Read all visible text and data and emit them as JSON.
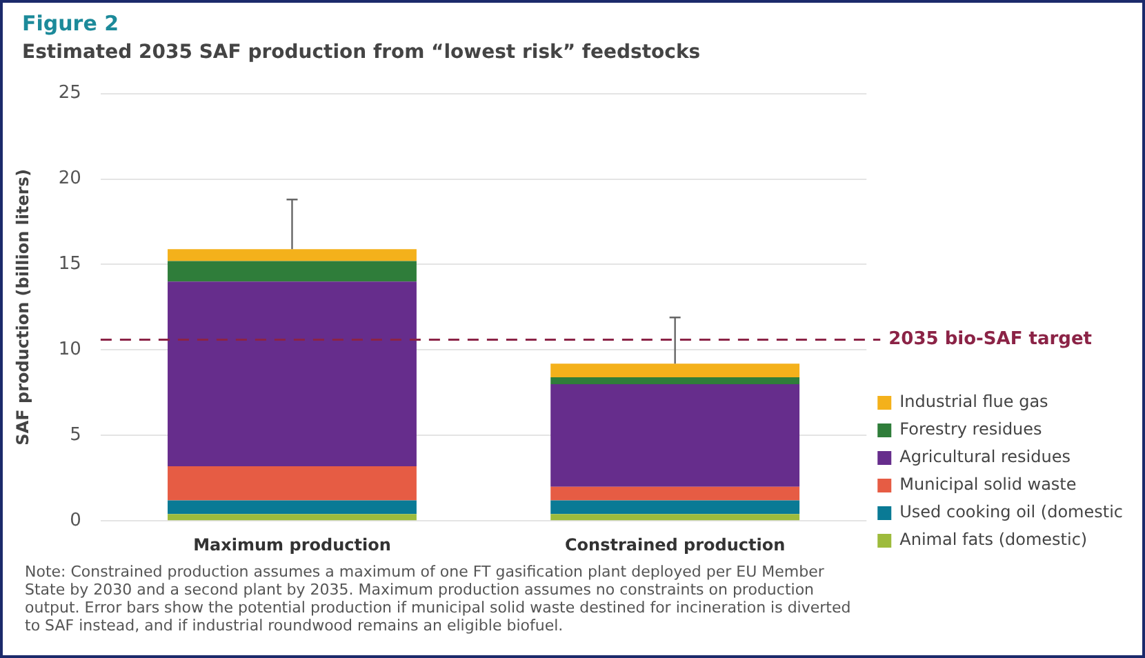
{
  "chart_data": {
    "type": "bar",
    "title": "Figure 2",
    "subtitle": "Estimated 2035 SAF production from “lowest risk” feedstocks",
    "ylabel": "SAF production (billion liters)",
    "categories": [
      "Maximum production",
      "Constrained production"
    ],
    "stacked": true,
    "series": [
      {
        "name": "Animal fats (domestic)",
        "color": "#9dbb3c",
        "values": [
          0.4,
          0.4
        ]
      },
      {
        "name": "Used cooking oil (domestic",
        "color": "#0a7a95",
        "values": [
          0.8,
          0.8
        ]
      },
      {
        "name": "Municipal solid waste",
        "color": "#e65c44",
        "values": [
          2.0,
          0.8
        ]
      },
      {
        "name": "Agricultural residues",
        "color": "#662d8c",
        "values": [
          10.8,
          6.0
        ]
      },
      {
        "name": "Forestry residues",
        "color": "#2f7d3a",
        "values": [
          1.2,
          0.4
        ]
      },
      {
        "name": "Industrial flue gas",
        "color": "#f4b11b",
        "values": [
          0.7,
          0.8
        ],
        "errors": [
          [
            15.9,
            18.8
          ],
          [
            9.2,
            11.9
          ]
        ]
      }
    ],
    "ylim": [
      0,
      25
    ],
    "yticks": [
      0,
      5,
      10,
      15,
      20,
      25
    ],
    "grid": "y",
    "legend": "right",
    "ref_lines": [
      {
        "axis": "y",
        "value": 10.6,
        "label": "2035 bio-SAF target",
        "color": "#8b2346",
        "line_style": "dashed"
      }
    ],
    "annotations": [
      "Note: Constrained production assumes a maximum of one FT gasification plant deployed per EU Member State by 2030 and a second plant by 2035. Maximum production assumes no constraints on production output. Error bars show the potential production if municipal solid waste destined for incineration is diverted to SAF instead, and if industrial roundwood remains an eligible biofuel."
    ]
  }
}
